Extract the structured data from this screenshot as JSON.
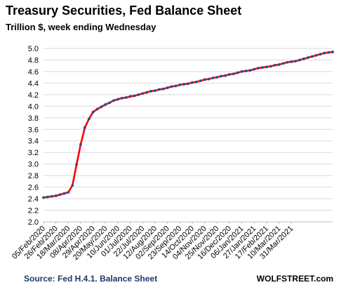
{
  "header": {
    "title": "Treasury Securities, Fed Balance Sheet",
    "subtitle": "Trillion $, week ending Wednesday"
  },
  "footer": {
    "source": "Source: Fed H.4.1. Balance Sheet",
    "brand": "WOLFSTREET.com"
  },
  "colors": {
    "line": "#ff0000",
    "marker": "#2f4a8c",
    "grid": "#d9d9d9",
    "axis": "#bfbfbf",
    "source_text": "#1f3864",
    "brand_text": "#000000"
  },
  "chart_data": {
    "type": "line",
    "title": "Treasury Securities, Fed Balance Sheet",
    "subtitle": "Trillion $, week ending Wednesday",
    "ylim": [
      2.0,
      5.0
    ],
    "ytick_step": 0.2,
    "ytick_labels": [
      "2.0",
      "2.2",
      "2.4",
      "2.6",
      "2.8",
      "3.0",
      "3.2",
      "3.4",
      "3.6",
      "3.8",
      "4.0",
      "4.2",
      "4.4",
      "4.6",
      "4.8",
      "5.0"
    ],
    "grid": true,
    "x_tick_labels": [
      "05/Feb/2020",
      "26/Feb/2020",
      "18/Mar/2020",
      "08/Apr/2020",
      "29/Apr/2020",
      "20/May/2020",
      "10/Jun/2020",
      "01/Jul/2020",
      "22/Jul/2020",
      "12/Aug/2020",
      "02/Sep/2020",
      "23/Sep/2020",
      "14/Oct/2020",
      "04/Nov/2020",
      "25/Nov/2020",
      "16/Dec/2020",
      "06/Jan/2021",
      "27/Jan/2021",
      "17/Feb/2021",
      "10/Mar/2021",
      "31/Mar/2021"
    ],
    "series": [
      {
        "values": [
          2.42,
          2.43,
          2.44,
          2.45,
          2.47,
          2.49,
          2.51,
          2.63,
          2.99,
          3.34,
          3.63,
          3.78,
          3.9,
          3.95,
          3.99,
          4.03,
          4.06,
          4.1,
          4.12,
          4.14,
          4.15,
          4.17,
          4.18,
          4.2,
          4.22,
          4.24,
          4.26,
          4.27,
          4.29,
          4.3,
          4.32,
          4.34,
          4.35,
          4.37,
          4.38,
          4.39,
          4.41,
          4.42,
          4.44,
          4.46,
          4.47,
          4.49,
          4.5,
          4.52,
          4.53,
          4.55,
          4.56,
          4.58,
          4.6,
          4.61,
          4.62,
          4.64,
          4.66,
          4.67,
          4.68,
          4.69,
          4.71,
          4.72,
          4.74,
          4.76,
          4.77,
          4.78,
          4.8,
          4.82,
          4.84,
          4.86,
          4.88,
          4.9,
          4.92,
          4.93,
          4.94
        ]
      }
    ]
  }
}
